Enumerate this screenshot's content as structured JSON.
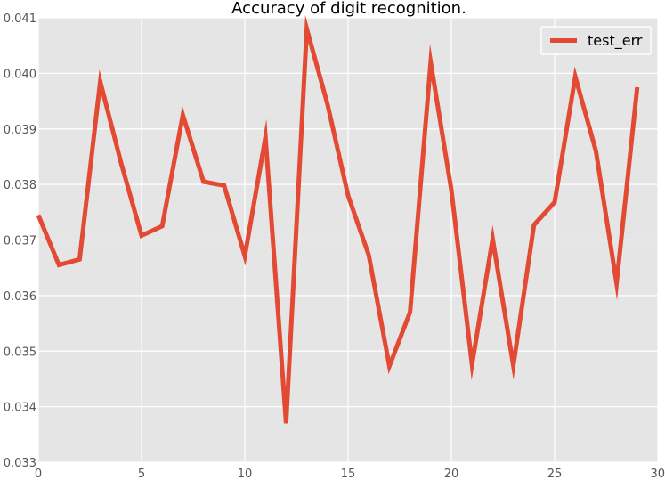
{
  "chart_data": {
    "type": "line",
    "title": "Accuracy of digit recognition.",
    "xlabel": "",
    "ylabel": "",
    "xlim": [
      0,
      30
    ],
    "ylim": [
      0.033,
      0.041
    ],
    "x_ticks": [
      0,
      5,
      10,
      15,
      20,
      25,
      30
    ],
    "y_ticks": [
      0.033,
      0.034,
      0.035,
      0.036,
      0.037,
      0.038,
      0.039,
      0.04,
      0.041
    ],
    "x_tick_labels": [
      "0",
      "5",
      "10",
      "15",
      "20",
      "25",
      "30"
    ],
    "y_tick_labels": [
      "0.033",
      "0.034",
      "0.035",
      "0.036",
      "0.037",
      "0.038",
      "0.039",
      "0.040",
      "0.041"
    ],
    "grid": true,
    "legend_position": "top-right",
    "series": [
      {
        "name": "test_err",
        "color": "#e24a33",
        "x": [
          0,
          1,
          2,
          3,
          4,
          5,
          6,
          7,
          8,
          9,
          10,
          11,
          12,
          13,
          14,
          15,
          16,
          17,
          18,
          19,
          20,
          21,
          22,
          23,
          24,
          25,
          26,
          27,
          28,
          29
        ],
        "values": [
          0.03745,
          0.03655,
          0.03665,
          0.03985,
          0.0384,
          0.03708,
          0.03725,
          0.03925,
          0.03805,
          0.03798,
          0.03671,
          0.03885,
          0.0337,
          0.0408,
          0.03945,
          0.0378,
          0.03673,
          0.03473,
          0.0357,
          0.0402,
          0.0379,
          0.03476,
          0.03702,
          0.03474,
          0.03727,
          0.03768,
          0.03994,
          0.0386,
          0.03622,
          0.03975
        ]
      }
    ]
  },
  "colors": {
    "plot_background": "#e5e5e5",
    "grid": "#ffffff",
    "tick_label": "#555555",
    "title": "#000000"
  }
}
